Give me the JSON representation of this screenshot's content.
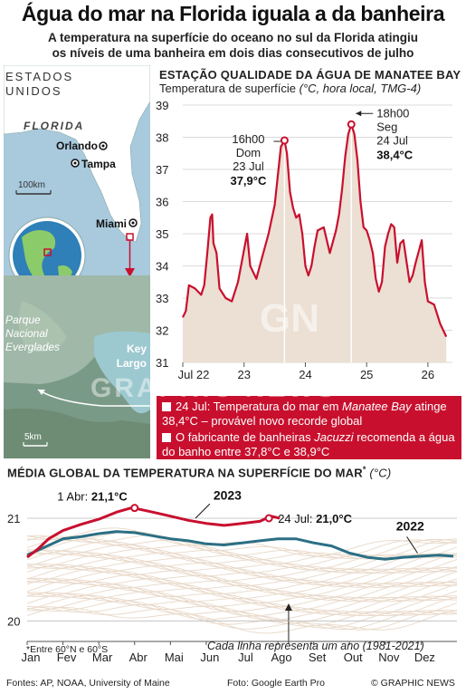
{
  "title": "Água do mar na Florida iguala a da banheira",
  "subtitle_1": "A temperatura na superfície do oceano no sul da Florida atingiu",
  "subtitle_2": "os níveis de uma banheira em dois dias consecutivos de julho",
  "map": {
    "country_1": "ESTADOS",
    "country_2": "UNIDOS",
    "state": "FLORIDA",
    "city_orlando": "Orlando",
    "city_tampa": "Tampa",
    "city_miami": "Miami",
    "scale_1": "100km",
    "place_1": "Parque",
    "place_2": "Nacional",
    "place_3": "Everglades",
    "place_key_1": "Key",
    "place_key_2": "Largo",
    "scale_2": "5km"
  },
  "chart_data": [
    {
      "type": "line",
      "title": "ESTAÇÃO QUALIDADE DA ÁGUA DE MANATEE BAY",
      "subtitle": "Temperatura de superfície",
      "subtitle_units": "(°C, hora local, TMG-4)",
      "x_ticks": [
        "Jul 22",
        "23",
        "24",
        "25",
        "26"
      ],
      "ylim": [
        31,
        39
      ],
      "y_ticks": [
        "31",
        "32",
        "33",
        "34",
        "35",
        "36",
        "37",
        "38",
        "39"
      ],
      "x": [
        22.0,
        22.05,
        22.1,
        22.2,
        22.3,
        22.35,
        22.4,
        22.45,
        22.48,
        22.5,
        22.55,
        22.6,
        22.7,
        22.8,
        22.9,
        23.0,
        23.05,
        23.1,
        23.2,
        23.3,
        23.4,
        23.5,
        23.55,
        23.6,
        23.66,
        23.7,
        23.75,
        23.8,
        23.85,
        23.9,
        23.95,
        24.0,
        24.05,
        24.1,
        24.15,
        24.2,
        24.3,
        24.4,
        24.5,
        24.55,
        24.6,
        24.65,
        24.7,
        24.75,
        24.8,
        24.85,
        24.9,
        24.95,
        25.0,
        25.05,
        25.1,
        25.15,
        25.2,
        25.25,
        25.3,
        25.35,
        25.4,
        25.45,
        25.5,
        25.55,
        25.6,
        25.7,
        25.75,
        25.8,
        25.9,
        25.95,
        26.0,
        26.1,
        26.2,
        26.3
      ],
      "y": [
        32.4,
        32.6,
        33.4,
        33.3,
        33.1,
        33.4,
        34.4,
        35.5,
        35.6,
        34.7,
        34.4,
        33.3,
        33.0,
        32.9,
        33.5,
        34.5,
        35.0,
        34.0,
        33.6,
        34.3,
        35.0,
        35.9,
        36.8,
        37.7,
        37.9,
        37.5,
        36.3,
        35.8,
        35.5,
        35.6,
        35.0,
        34.0,
        33.7,
        34.0,
        34.6,
        35.1,
        35.2,
        34.4,
        35.1,
        35.6,
        36.4,
        37.4,
        38.1,
        38.4,
        38.1,
        37.3,
        36.0,
        35.2,
        35.1,
        34.8,
        34.4,
        33.6,
        33.2,
        33.5,
        34.6,
        35.0,
        35.3,
        35.2,
        34.1,
        34.7,
        34.8,
        33.5,
        33.7,
        34.1,
        34.8,
        33.5,
        32.9,
        32.8,
        32.2,
        31.8
      ],
      "annotations": [
        {
          "line1": "16h00",
          "line2": "Dom",
          "line3": "23 Jul",
          "value": "37,9°C",
          "x": 23.66,
          "y": 37.9
        },
        {
          "line1": "18h00",
          "line2": "Seg",
          "line3": "24 Jul",
          "value": "38,4°C",
          "x": 24.75,
          "y": 38.4
        }
      ],
      "color": "#c8102e",
      "fill": "#ecdfd3"
    },
    {
      "type": "line",
      "title": "MÉDIA GLOBAL DA TEMPERATURA NA SUPERFÍCIE DO MAR",
      "title_mark": "*",
      "title_units": "(°C)",
      "x_ticks": [
        "Jan",
        "Fev",
        "Mar",
        "Abr",
        "Mai",
        "Jun",
        "Jul",
        "Ago",
        "Set",
        "Out",
        "Nov",
        "Dez"
      ],
      "ylim": [
        19.8,
        21.3
      ],
      "y_ticks": [
        "20",
        "21"
      ],
      "series": [
        {
          "name": "2023",
          "color": "#c8102e",
          "x": [
            0.0,
            0.3,
            0.6,
            1.0,
            1.5,
            2.0,
            2.5,
            2.9,
            3.1,
            3.5,
            4.0,
            4.5,
            5.0,
            5.5,
            6.0,
            6.5,
            6.8,
            7.05
          ],
          "y": [
            20.62,
            20.7,
            20.8,
            20.88,
            20.94,
            20.99,
            21.06,
            21.1,
            21.09,
            21.06,
            21.02,
            20.98,
            20.95,
            20.93,
            20.95,
            20.97,
            21.02,
            21.0
          ]
        },
        {
          "name": "2022",
          "color": "#2b6f84",
          "x": [
            0.0,
            0.5,
            1.0,
            1.5,
            2.0,
            2.5,
            3.0,
            3.5,
            4.0,
            4.5,
            5.0,
            5.5,
            6.0,
            6.5,
            7.0,
            7.5,
            8.0,
            8.5,
            9.0,
            9.5,
            10.0,
            10.5,
            11.0,
            11.5,
            11.9
          ],
          "y": [
            20.64,
            20.72,
            20.8,
            20.82,
            20.85,
            20.87,
            20.86,
            20.83,
            20.8,
            20.78,
            20.75,
            20.74,
            20.76,
            20.78,
            20.8,
            20.8,
            20.76,
            20.73,
            20.66,
            20.62,
            20.6,
            20.62,
            20.63,
            20.64,
            20.63
          ]
        }
      ],
      "annotations": [
        {
          "label": "1 Abr:",
          "value": "21,1°C",
          "x": 3.0,
          "y": 21.1
        },
        {
          "label": "24 Jul:",
          "value": "21,0°C",
          "x": 6.75,
          "y": 21.0
        }
      ],
      "background_note": "Cada linha representa um ano (1981-2021)"
    }
  ],
  "info": {
    "item_1_a": "24 Jul: Temperatura do mar em ",
    "item_1_b": "Manatee Bay",
    "item_1_c": " atinge 38,4°C – provável novo recorde global",
    "item_2_a": "O fabricante de banheiras ",
    "item_2_b": "Jacuzzi",
    "item_2_c": " recomenda a água do banho entre 37,8°C e 38,9°C"
  },
  "footnote": "*Entre 60°N e 60°S",
  "sources": "Fontes: AP, NOAA, University of Maine",
  "photo": "Foto: Google Earth Pro",
  "credit": "© GRAPHIC NEWS",
  "watermark": "GRAPHIC NEWS",
  "colors": {
    "accent": "#c8102e",
    "blue": "#2b6f84",
    "sea": "#a8c8dc",
    "land": "#ffffff"
  }
}
